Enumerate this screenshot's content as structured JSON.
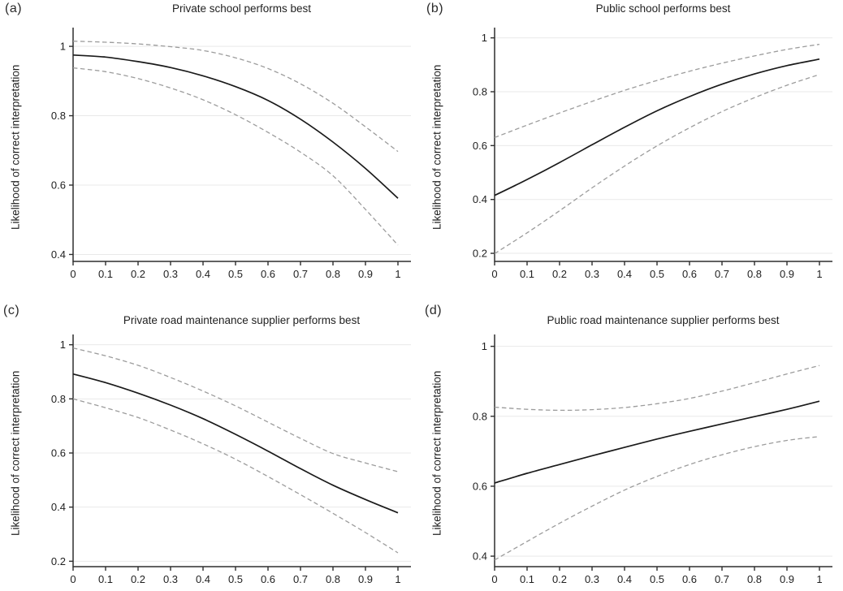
{
  "figure": {
    "colors": {
      "solid_line": "#1a1a1a",
      "ci_line": "#9c9c9c",
      "gridline": "#e9e9e9",
      "axis": "#2e2e2e",
      "text": "#1f1f1f",
      "background": "#ffffff"
    }
  },
  "chart_data": [
    {
      "panel_label": "(a)",
      "title": "Private school performs best",
      "ylabel": "Likelihood of correct interpretation",
      "xlabel": "",
      "type": "line",
      "grid": "horizontal",
      "legend": "none",
      "x": [
        0,
        0.1,
        0.2,
        0.3,
        0.4,
        0.5,
        0.6,
        0.7,
        0.8,
        0.9,
        1
      ],
      "xtick_labels": [
        "0",
        "0.1",
        "0.2",
        "0.3",
        "0.4",
        "0.5",
        "0.6",
        "0.7",
        "0.8",
        "0.9",
        "1"
      ],
      "ylim": [
        0.38,
        1.04
      ],
      "yticks": [
        0.4,
        0.6,
        0.8,
        1
      ],
      "ytick_labels": [
        "0.4",
        "0.6",
        "0.8",
        "1"
      ],
      "series": [
        {
          "name": "upper 95% CI",
          "style": "dashed",
          "values": [
            1.015,
            1.012,
            1.007,
            0.999,
            0.988,
            0.967,
            0.936,
            0.892,
            0.836,
            0.768,
            0.697
          ]
        },
        {
          "name": "predicted probability",
          "style": "solid",
          "values": [
            0.975,
            0.969,
            0.956,
            0.939,
            0.915,
            0.884,
            0.844,
            0.79,
            0.724,
            0.648,
            0.562
          ]
        },
        {
          "name": "lower 95% CI",
          "style": "dashed",
          "values": [
            0.938,
            0.927,
            0.907,
            0.88,
            0.846,
            0.803,
            0.752,
            0.695,
            0.627,
            0.53,
            0.427
          ]
        }
      ]
    },
    {
      "panel_label": "(b)",
      "title": "Public school performs best",
      "ylabel": "Likelihood of correct interpretation",
      "xlabel": "",
      "type": "line",
      "grid": "horizontal",
      "legend": "none",
      "x": [
        0,
        0.1,
        0.2,
        0.3,
        0.4,
        0.5,
        0.6,
        0.7,
        0.8,
        0.9,
        1
      ],
      "xtick_labels": [
        "0",
        "0.1",
        "0.2",
        "0.3",
        "0.4",
        "0.5",
        "0.6",
        "0.7",
        "0.8",
        "0.9",
        "1"
      ],
      "ylim": [
        0.17,
        1.02
      ],
      "yticks": [
        0.2,
        0.4,
        0.6,
        0.8,
        1
      ],
      "ytick_labels": [
        "0.2",
        "0.4",
        "0.6",
        "0.8",
        "1"
      ],
      "series": [
        {
          "name": "upper 95% CI",
          "style": "dashed",
          "values": [
            0.63,
            0.676,
            0.721,
            0.764,
            0.805,
            0.842,
            0.876,
            0.906,
            0.933,
            0.957,
            0.976
          ]
        },
        {
          "name": "predicted probability",
          "style": "solid",
          "values": [
            0.415,
            0.474,
            0.537,
            0.603,
            0.668,
            0.729,
            0.782,
            0.828,
            0.866,
            0.897,
            0.921
          ]
        },
        {
          "name": "lower 95% CI",
          "style": "dashed",
          "values": [
            0.199,
            0.276,
            0.358,
            0.443,
            0.524,
            0.599,
            0.666,
            0.726,
            0.778,
            0.824,
            0.864
          ]
        }
      ]
    },
    {
      "panel_label": "(c)",
      "title": "Private road maintenance supplier performs best",
      "ylabel": "Likelihood of correct interpretation",
      "xlabel": "",
      "type": "line",
      "grid": "horizontal",
      "legend": "none",
      "x": [
        0,
        0.1,
        0.2,
        0.3,
        0.4,
        0.5,
        0.6,
        0.7,
        0.8,
        0.9,
        1
      ],
      "xtick_labels": [
        "0",
        "0.1",
        "0.2",
        "0.3",
        "0.4",
        "0.5",
        "0.6",
        "0.7",
        "0.8",
        "0.9",
        "1"
      ],
      "ylim": [
        0.18,
        1.02
      ],
      "yticks": [
        0.2,
        0.4,
        0.6,
        0.8,
        1
      ],
      "ytick_labels": [
        "0.2",
        "0.4",
        "0.6",
        "0.8",
        "1"
      ],
      "series": [
        {
          "name": "upper 95% CI",
          "style": "dashed",
          "values": [
            0.988,
            0.959,
            0.924,
            0.879,
            0.829,
            0.774,
            0.714,
            0.654,
            0.598,
            0.563,
            0.531
          ]
        },
        {
          "name": "predicted probability",
          "style": "solid",
          "values": [
            0.892,
            0.86,
            0.821,
            0.777,
            0.727,
            0.669,
            0.607,
            0.542,
            0.481,
            0.428,
            0.379
          ]
        },
        {
          "name": "lower 95% CI",
          "style": "dashed",
          "values": [
            0.8,
            0.767,
            0.731,
            0.685,
            0.634,
            0.577,
            0.513,
            0.446,
            0.377,
            0.306,
            0.231
          ]
        }
      ]
    },
    {
      "panel_label": "(d)",
      "title": "Public road maintenance supplier performs best",
      "ylabel": "Likelihood of correct interpretation",
      "xlabel": "",
      "type": "line",
      "grid": "horizontal",
      "legend": "none",
      "x": [
        0,
        0.1,
        0.2,
        0.3,
        0.4,
        0.5,
        0.6,
        0.7,
        0.8,
        0.9,
        1
      ],
      "xtick_labels": [
        "0",
        "0.1",
        "0.2",
        "0.3",
        "0.4",
        "0.5",
        "0.6",
        "0.7",
        "0.8",
        "0.9",
        "1"
      ],
      "ylim": [
        0.37,
        1.02
      ],
      "yticks": [
        0.4,
        0.6,
        0.8,
        1
      ],
      "ytick_labels": [
        "0.4",
        "0.6",
        "0.8",
        "1"
      ],
      "series": [
        {
          "name": "upper 95% CI",
          "style": "dashed",
          "values": [
            0.826,
            0.82,
            0.817,
            0.819,
            0.825,
            0.836,
            0.851,
            0.872,
            0.896,
            0.921,
            0.945
          ]
        },
        {
          "name": "predicted probability",
          "style": "solid",
          "values": [
            0.609,
            0.637,
            0.662,
            0.687,
            0.711,
            0.735,
            0.757,
            0.778,
            0.799,
            0.82,
            0.843
          ]
        },
        {
          "name": "lower 95% CI",
          "style": "dashed",
          "values": [
            0.389,
            0.442,
            0.494,
            0.543,
            0.589,
            0.628,
            0.662,
            0.69,
            0.713,
            0.731,
            0.742
          ]
        }
      ]
    }
  ]
}
